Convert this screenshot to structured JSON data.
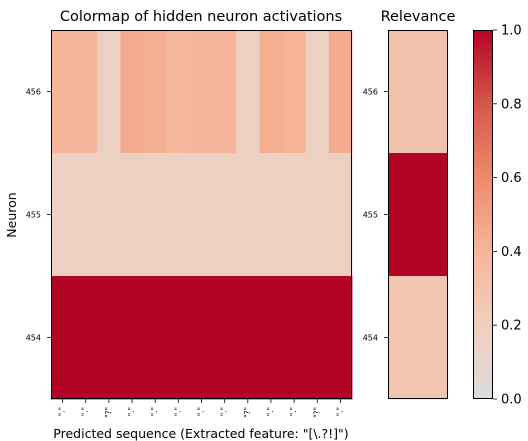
{
  "chart_data": [
    {
      "type": "heatmap",
      "title": "Colormap of hidden neuron activations",
      "xlabel": "Predicted sequence (Extracted feature: \"[\\.?!]\")",
      "ylabel": "Neuron",
      "x_tick_labels": [
        "\".\"",
        "\".\"",
        "\"?\"",
        "\".\"",
        "\".\"",
        "\".\"",
        "\".\"",
        "\".\"",
        "\"?\"",
        "\".\"",
        "\".\"",
        "\"?\"",
        "\".\""
      ],
      "y_tick_labels": [
        "456",
        "455",
        "454"
      ],
      "matrix": [
        [
          0.4,
          0.4,
          0.17,
          0.45,
          0.43,
          0.38,
          0.4,
          0.4,
          0.17,
          0.43,
          0.41,
          0.17,
          0.45
        ],
        [
          0.17,
          0.17,
          0.17,
          0.17,
          0.17,
          0.17,
          0.17,
          0.17,
          0.17,
          0.17,
          0.17,
          0.17,
          0.17
        ],
        [
          1.0,
          1.0,
          1.0,
          1.0,
          1.0,
          1.0,
          1.0,
          1.0,
          1.0,
          1.0,
          1.0,
          1.0,
          1.0
        ]
      ]
    },
    {
      "type": "heatmap",
      "title": "Relevance",
      "y_tick_labels": [
        "456",
        "455",
        "454"
      ],
      "values": [
        0.3,
        1.0,
        0.28
      ]
    }
  ],
  "colorbar": {
    "colormap": "coolwarm-upper",
    "min": 0.0,
    "max": 1.0,
    "ticks": [
      "0.0",
      "0.2",
      "0.4",
      "0.6",
      "0.8",
      "1.0"
    ],
    "stops": [
      "#dcdcdc",
      "#efcfbe",
      "#f6b59a",
      "#ee8a6d",
      "#d45749",
      "#b40426"
    ]
  }
}
